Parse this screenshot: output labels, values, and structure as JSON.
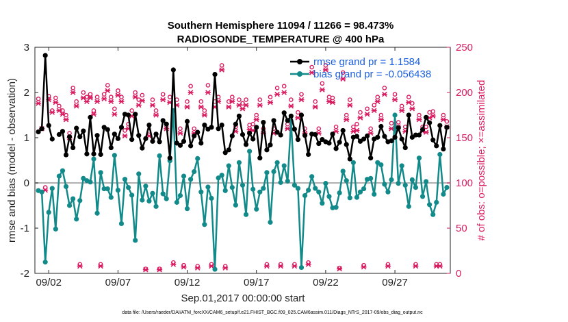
{
  "chart_data": {
    "type": "line",
    "title": "Southern Hemisphere 11094 / 11266 = 98.473%",
    "subtitle": "RADIOSONDE_TEMPERATURE @ 400 hPa",
    "xlabel": "Sep.01,2017 00:00:00 start",
    "ylabel": "rmse and bias (model - observation)",
    "y2label": "# of obs: o=possible; ×=assimilated",
    "footnote": "data file: /Users/raeder/DAI/ATM_forcXX/CAM6_setup/f.e21.FHIST_BGC.f09_025.CAM6assim.011/Diags_NTrS_2017-09/obs_diag_output.nc",
    "xlim": [
      0,
      30
    ],
    "ylim": [
      -2,
      3
    ],
    "y2lim": [
      0,
      250
    ],
    "xticks": [
      1,
      6,
      11,
      16,
      21,
      26
    ],
    "xtick_labels": [
      "09/02",
      "09/07",
      "09/12",
      "09/17",
      "09/22",
      "09/27"
    ],
    "yticks": [
      -2,
      -1,
      0,
      1,
      2,
      3
    ],
    "y2ticks": [
      0,
      50,
      100,
      150,
      200,
      250
    ],
    "colors": {
      "rmse": "#000000",
      "bias": "#138a8a",
      "obs": "#d81b60",
      "zero": "#b0b0b0",
      "legend": "#1a5fe0"
    },
    "x": [
      0.25,
      0.5,
      0.75,
      1,
      1.25,
      1.5,
      1.75,
      2,
      2.25,
      2.5,
      2.75,
      3,
      3.25,
      3.5,
      3.75,
      4,
      4.25,
      4.5,
      4.75,
      5,
      5.25,
      5.5,
      5.75,
      6,
      6.25,
      6.5,
      6.75,
      7,
      7.25,
      7.5,
      7.75,
      8,
      8.25,
      8.5,
      8.75,
      9,
      9.25,
      9.5,
      9.75,
      10,
      10.25,
      10.5,
      10.75,
      11,
      11.25,
      11.5,
      11.75,
      12,
      12.25,
      12.5,
      12.75,
      13,
      13.25,
      13.5,
      13.75,
      14,
      14.25,
      14.5,
      14.75,
      15,
      15.25,
      15.5,
      15.75,
      16,
      16.25,
      16.5,
      16.75,
      17,
      17.25,
      17.5,
      17.75,
      18,
      18.25,
      18.5,
      18.75,
      19,
      19.25,
      19.5,
      19.75,
      20,
      20.25,
      20.5,
      20.75,
      21,
      21.25,
      21.5,
      21.75,
      22,
      22.25,
      22.5,
      22.75,
      23,
      23.25,
      23.5,
      23.75,
      24,
      24.25,
      24.5,
      24.75,
      25,
      25.25,
      25.5,
      25.75,
      26,
      26.25,
      26.5,
      26.75,
      27,
      27.25,
      27.5,
      27.75,
      28,
      28.25,
      28.5,
      28.75,
      29,
      29.25,
      29.5,
      29.75
    ],
    "series": [
      {
        "name": "rmse",
        "legend_label": "rmse grand pr = 1.1584",
        "values": [
          1.13,
          1.2,
          2.82,
          1.27,
          0.97,
          null,
          1.07,
          1.14,
          0.62,
          1.02,
          0.78,
          1.21,
          1.02,
          1.15,
          0.64,
          1.45,
          0.64,
          1.05,
          0.63,
          1.23,
          1.18,
          0.78,
          1.08,
          0.98,
          1.23,
          1.52,
          1.5,
          0.96,
          1.52,
          1.05,
          0.77,
          0.98,
          1.28,
          0.92,
          1.08,
          0.91,
          1.38,
          1.3,
          0.55,
          2.5,
          0.88,
          0.83,
          0.92,
          1.36,
          0.82,
          1.04,
          1.12,
          0.88,
          1.28,
          1.19,
          1.23,
          2.4,
          1.2,
          1.28,
          0.67,
          0.73,
          1.04,
          1.3,
          1.48,
          1.07,
          0.85,
          1.1,
          0.97,
          1.23,
          0.55,
          1.34,
          0.73,
          0.84,
          1.38,
          1.12,
          1.06,
          1.55,
          1.38,
          1.48,
          1.19,
          0.96,
          1.5,
          1.05,
          0.63,
          1.08,
          1.07,
          0.87,
          0.96,
          0.91,
          0.88,
          1.08,
          0.76,
          0.9,
          1.16,
          0.85,
          0.53,
          1.01,
          1.03,
          0.92,
          0.97,
          1.04,
          0.55,
          0.97,
          1.01,
          1.25,
          1.03,
          0.91,
          0.93,
          1.01,
          1.22,
          0.97,
          0.78,
          1.5,
          1.01,
          1.06,
          1.06,
          1.18,
          1.45,
          1.33,
          0.95,
          0.82,
          1.27,
          0.75,
          1.23
        ]
      },
      {
        "name": "bias",
        "legend_label": "bias grand pr = -0.056438",
        "values": [
          -0.17,
          -0.2,
          -1.75,
          -0.65,
          -0.12,
          -1.02,
          0.15,
          0.27,
          -0.08,
          -0.5,
          -0.35,
          -0.8,
          -0.39,
          0.1,
          0.05,
          0.02,
          0.53,
          -0.67,
          0.23,
          -0.13,
          -0.13,
          -0.32,
          0.61,
          -0.16,
          -0.9,
          0.08,
          -0.1,
          -0.27,
          -1.27,
          0.2,
          -0.38,
          -0.07,
          -0.4,
          -0.23,
          -0.52,
          0.6,
          -0.24,
          -0.35,
          0.49,
          1.6,
          -0.43,
          -0.28,
          0.15,
          -0.57,
          0.08,
          0.25,
          0.54,
          -0.2,
          -0.92,
          -0.09,
          -0.34,
          -1.91,
          0.11,
          0.17,
          -0.17,
          0.38,
          -0.1,
          -0.49,
          0.45,
          -0.05,
          -0.7,
          0.7,
          -0.14,
          -0.58,
          -0.2,
          -0.12,
          0.23,
          -0.87,
          0.25,
          0.45,
          0.01,
          0.38,
          0.04,
          1.37,
          -0.05,
          -0.12,
          -1.87,
          -0.28,
          -0.16,
          0.14,
          -0.12,
          -0.2,
          -0.45,
          -0.01,
          -0.3,
          -0.55,
          -0.54,
          -0.22,
          0.26,
          0.05,
          -0.33,
          0.45,
          -0.32,
          -0.2,
          -0.13,
          0.08,
          0.1,
          -0.25,
          0.45,
          0.4,
          -0.03,
          -0.2,
          0.07,
          1.5,
          -0.01,
          0.38,
          -0.05,
          -0.52,
          0.07,
          -0.1,
          0.55,
          -0.3,
          0.03,
          -0.48,
          -0.7,
          -0.43,
          0.63,
          -0.25,
          -0.1
        ]
      },
      {
        "name": "obs_possible",
        "axis": "right",
        "values": [
          193,
          160,
          95,
          196,
          180,
          194,
          185,
          180,
          175,
          155,
          205,
          190,
          10,
          200,
          195,
          198,
          180,
          195,
          10,
          198,
          208,
          195,
          182,
          202,
          195,
          158,
          165,
          180,
          200,
          192,
          197,
          5,
          157,
          192,
          180,
          5,
          198,
          165,
          195,
          12,
          192,
          160,
          9,
          190,
          207,
          160,
          8,
          190,
          180,
          208,
          10,
          190,
          195,
          230,
          8,
          190,
          195,
          162,
          192,
          188,
          192,
          164,
          165,
          175,
          192,
          160,
          10,
          195,
          160,
          205,
          10,
          207,
          165,
          192,
          10,
          178,
          198,
          160,
          12,
          228,
          190,
          160,
          210,
          230,
          195,
          194,
          162,
          6,
          222,
          175,
          192,
          162,
          165,
          178,
          9,
          182,
          160,
          186,
          195,
          175,
          205,
          10,
          166,
          198,
          167,
          185,
          162,
          195,
          188,
          10,
          175,
          162,
          162,
          178,
          179,
          10,
          10,
          175,
          168
        ]
      },
      {
        "name": "obs_assimilated",
        "axis": "right",
        "values": [
          188,
          160,
          92,
          192,
          178,
          189,
          180,
          176,
          170,
          150,
          200,
          185,
          8,
          194,
          190,
          194,
          176,
          190,
          8,
          193,
          202,
          190,
          176,
          197,
          190,
          152,
          160,
          174,
          195,
          186,
          191,
          4,
          152,
          186,
          175,
          4,
          192,
          160,
          189,
          10,
          186,
          155,
          7,
          184,
          200,
          155,
          6,
          184,
          175,
          200,
          8,
          184,
          190,
          225,
          6,
          184,
          190,
          157,
          186,
          182,
          186,
          159,
          158,
          170,
          186,
          155,
          8,
          189,
          155,
          198,
          8,
          200,
          160,
          185,
          8,
          172,
          192,
          155,
          10,
          222,
          184,
          155,
          203,
          225,
          190,
          189,
          157,
          5,
          215,
          170,
          186,
          157,
          158,
          172,
          7,
          176,
          155,
          180,
          190,
          170,
          198,
          8,
          160,
          192,
          162,
          180,
          157,
          189,
          182,
          8,
          170,
          157,
          156,
          172,
          174,
          8,
          8,
          170,
          162
        ]
      }
    ],
    "legend_position": "top-right"
  }
}
